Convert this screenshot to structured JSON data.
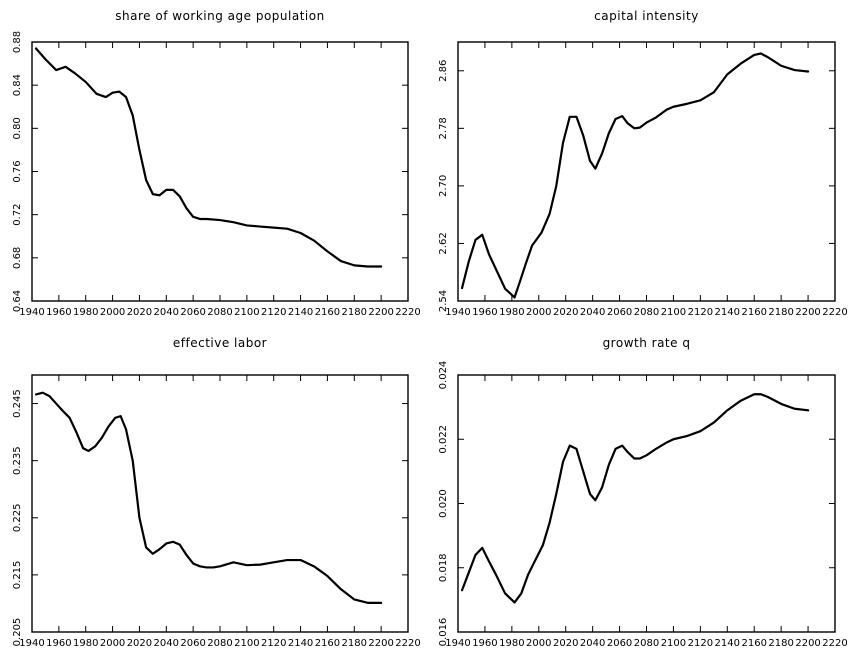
{
  "chart_data": [
    {
      "type": "line",
      "title": "share of working age population",
      "xlabel": "",
      "ylabel": "",
      "xlim": [
        1940,
        2220
      ],
      "ylim": [
        0.64,
        0.88
      ],
      "xticks": [
        "1940",
        "1960",
        "1980",
        "2000",
        "2020",
        "2040",
        "2060",
        "2080",
        "2100",
        "2120",
        "2140",
        "2160",
        "2180",
        "2200",
        "2220"
      ],
      "yticks": [
        "0.64",
        "0.68",
        "0.72",
        "0.76",
        "0.80",
        "0.84",
        "0.88"
      ],
      "grid": false,
      "series": [
        {
          "x": [
            1943,
            1950,
            1958,
            1965,
            1972,
            1980,
            1988,
            1995,
            2000,
            2005,
            2010,
            2015,
            2020,
            2025,
            2030,
            2035,
            2040,
            2045,
            2050,
            2055,
            2060,
            2065,
            2070,
            2080,
            2090,
            2100,
            2110,
            2120,
            2130,
            2140,
            2150,
            2160,
            2170,
            2180,
            2190,
            2200
          ],
          "y": [
            0.874,
            0.864,
            0.854,
            0.857,
            0.851,
            0.843,
            0.832,
            0.829,
            0.833,
            0.834,
            0.829,
            0.812,
            0.78,
            0.752,
            0.739,
            0.738,
            0.743,
            0.743,
            0.737,
            0.726,
            0.718,
            0.716,
            0.716,
            0.715,
            0.713,
            0.71,
            0.709,
            0.708,
            0.707,
            0.703,
            0.696,
            0.686,
            0.677,
            0.673,
            0.672,
            0.672
          ]
        }
      ]
    },
    {
      "type": "line",
      "title": "capital intensity",
      "xlabel": "",
      "ylabel": "",
      "xlim": [
        1940,
        2220
      ],
      "ylim": [
        2.54,
        2.9
      ],
      "xticks": [
        "1940",
        "1960",
        "1980",
        "2000",
        "2020",
        "2040",
        "2060",
        "2080",
        "2100",
        "2120",
        "2140",
        "2160",
        "2180",
        "2200",
        "2220"
      ],
      "yticks": [
        "2.54",
        "2.62",
        "2.70",
        "2.78",
        "2.86"
      ],
      "grid": false,
      "series": [
        {
          "x": [
            1943,
            1948,
            1953,
            1958,
            1963,
            1968,
            1975,
            1982,
            1986,
            1990,
            1995,
            2002,
            2008,
            2013,
            2018,
            2023,
            2028,
            2033,
            2038,
            2042,
            2047,
            2052,
            2057,
            2062,
            2066,
            2071,
            2075,
            2080,
            2087,
            2095,
            2100,
            2110,
            2120,
            2130,
            2140,
            2150,
            2160,
            2165,
            2170,
            2180,
            2190,
            2200
          ],
          "y": [
            2.558,
            2.595,
            2.625,
            2.632,
            2.605,
            2.585,
            2.557,
            2.545,
            2.567,
            2.59,
            2.617,
            2.635,
            2.661,
            2.7,
            2.76,
            2.796,
            2.796,
            2.77,
            2.735,
            2.724,
            2.745,
            2.773,
            2.793,
            2.797,
            2.787,
            2.78,
            2.781,
            2.788,
            2.795,
            2.806,
            2.81,
            2.814,
            2.819,
            2.83,
            2.855,
            2.87,
            2.882,
            2.884,
            2.879,
            2.867,
            2.861,
            2.859
          ]
        }
      ]
    },
    {
      "type": "line",
      "title": "effective labor",
      "xlabel": "",
      "ylabel": "",
      "xlim": [
        1940,
        2220
      ],
      "ylim": [
        0.205,
        0.25
      ],
      "xticks": [
        "1940",
        "1960",
        "1980",
        "2000",
        "2020",
        "2040",
        "2060",
        "2080",
        "2100",
        "2120",
        "2140",
        "2160",
        "2180",
        "2200",
        "2220"
      ],
      "yticks": [
        "0.205",
        "0.215",
        "0.225",
        "0.235",
        "0.245"
      ],
      "grid": false,
      "series": [
        {
          "x": [
            1943,
            1948,
            1953,
            1958,
            1963,
            1968,
            1973,
            1978,
            1982,
            1987,
            1992,
            1997,
            2002,
            2006,
            2010,
            2015,
            2020,
            2025,
            2030,
            2035,
            2040,
            2045,
            2050,
            2055,
            2060,
            2065,
            2070,
            2075,
            2080,
            2090,
            2100,
            2110,
            2120,
            2130,
            2140,
            2150,
            2160,
            2170,
            2180,
            2190,
            2200
          ],
          "y": [
            0.2466,
            0.2469,
            0.2463,
            0.245,
            0.2437,
            0.2425,
            0.24,
            0.2372,
            0.2367,
            0.2375,
            0.239,
            0.241,
            0.2425,
            0.2428,
            0.2405,
            0.235,
            0.225,
            0.2198,
            0.2187,
            0.2195,
            0.2205,
            0.2208,
            0.2203,
            0.2185,
            0.217,
            0.2165,
            0.2163,
            0.2163,
            0.2165,
            0.2172,
            0.2167,
            0.2168,
            0.2172,
            0.2176,
            0.2176,
            0.2165,
            0.2148,
            0.2125,
            0.2107,
            0.2101,
            0.2101
          ]
        }
      ]
    },
    {
      "type": "line",
      "title": "growth rate q",
      "xlabel": "",
      "ylabel": "",
      "xlim": [
        1940,
        2220
      ],
      "ylim": [
        0.016,
        0.024
      ],
      "xticks": [
        "1940",
        "1960",
        "1980",
        "2000",
        "2020",
        "2040",
        "2060",
        "2080",
        "2100",
        "2120",
        "2140",
        "2160",
        "2180",
        "2200",
        "2220"
      ],
      "yticks": [
        "0.016",
        "0.018",
        "0.020",
        "0.022",
        "0.024"
      ],
      "grid": false,
      "series": [
        {
          "x": [
            1943,
            1948,
            1953,
            1958,
            1963,
            1968,
            1975,
            1982,
            1987,
            1992,
            1997,
            2003,
            2008,
            2013,
            2018,
            2023,
            2028,
            2033,
            2038,
            2042,
            2047,
            2052,
            2057,
            2062,
            2066,
            2071,
            2075,
            2080,
            2087,
            2095,
            2100,
            2110,
            2120,
            2130,
            2140,
            2150,
            2160,
            2165,
            2170,
            2180,
            2190,
            2200
          ],
          "y": [
            0.0173,
            0.01785,
            0.0184,
            0.01862,
            0.0182,
            0.0178,
            0.0172,
            0.01692,
            0.0172,
            0.01778,
            0.0182,
            0.0187,
            0.0194,
            0.0203,
            0.0213,
            0.0218,
            0.0217,
            0.021,
            0.0203,
            0.0201,
            0.0205,
            0.0212,
            0.0217,
            0.0218,
            0.0216,
            0.0214,
            0.0214,
            0.0215,
            0.0217,
            0.0219,
            0.022,
            0.0221,
            0.02225,
            0.02252,
            0.0229,
            0.0232,
            0.0234,
            0.0234,
            0.02332,
            0.0231,
            0.02295,
            0.0229
          ]
        }
      ]
    }
  ]
}
